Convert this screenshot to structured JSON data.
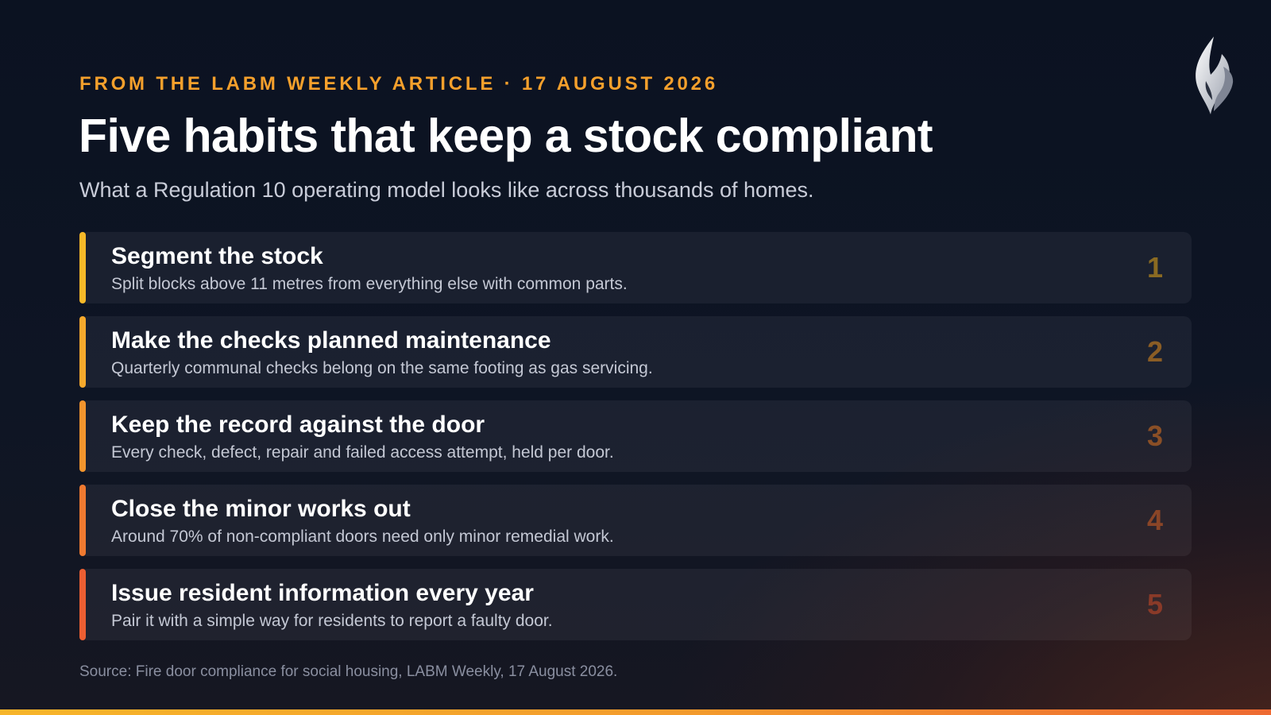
{
  "header": {
    "eyebrow": "FROM THE LABM WEEKLY ARTICLE · 17 AUGUST 2026",
    "title": "Five habits that keep a stock compliant",
    "subtitle": "What a Regulation 10 operating model looks like across thousands of homes."
  },
  "logo": {
    "icon": "flame-logo-icon"
  },
  "habits": [
    {
      "title": "Segment the stock",
      "description": "Split blocks above 11 metres from everything else with common parts.",
      "number": "1",
      "accent_color": "#f7b928",
      "number_color": "#8a6a22"
    },
    {
      "title": "Make the checks planned maintenance",
      "description": "Quarterly communal checks belong on the same footing as gas servicing.",
      "number": "2",
      "accent_color": "#f6a92c",
      "number_color": "#8a5d25"
    },
    {
      "title": "Keep the record against the door",
      "description": "Every check, defect, repair and failed access attempt, held per door.",
      "number": "3",
      "accent_color": "#f3952d",
      "number_color": "#8a4f26"
    },
    {
      "title": "Close the minor works out",
      "description": "Around 70% of non-compliant doors need only minor remedial work.",
      "number": "4",
      "accent_color": "#f07a30",
      "number_color": "#8a4527"
    },
    {
      "title": "Issue resident information every year",
      "description": "Pair it with a simple way for residents to report a faulty door.",
      "number": "5",
      "accent_color": "#ec5f32",
      "number_color": "#8a3a28"
    }
  ],
  "footer": {
    "source": "Source: Fire door compliance for social housing, LABM Weekly, 17 August 2026."
  },
  "colors": {
    "eyebrow": "#f5a02c",
    "background": "#0b1221"
  }
}
